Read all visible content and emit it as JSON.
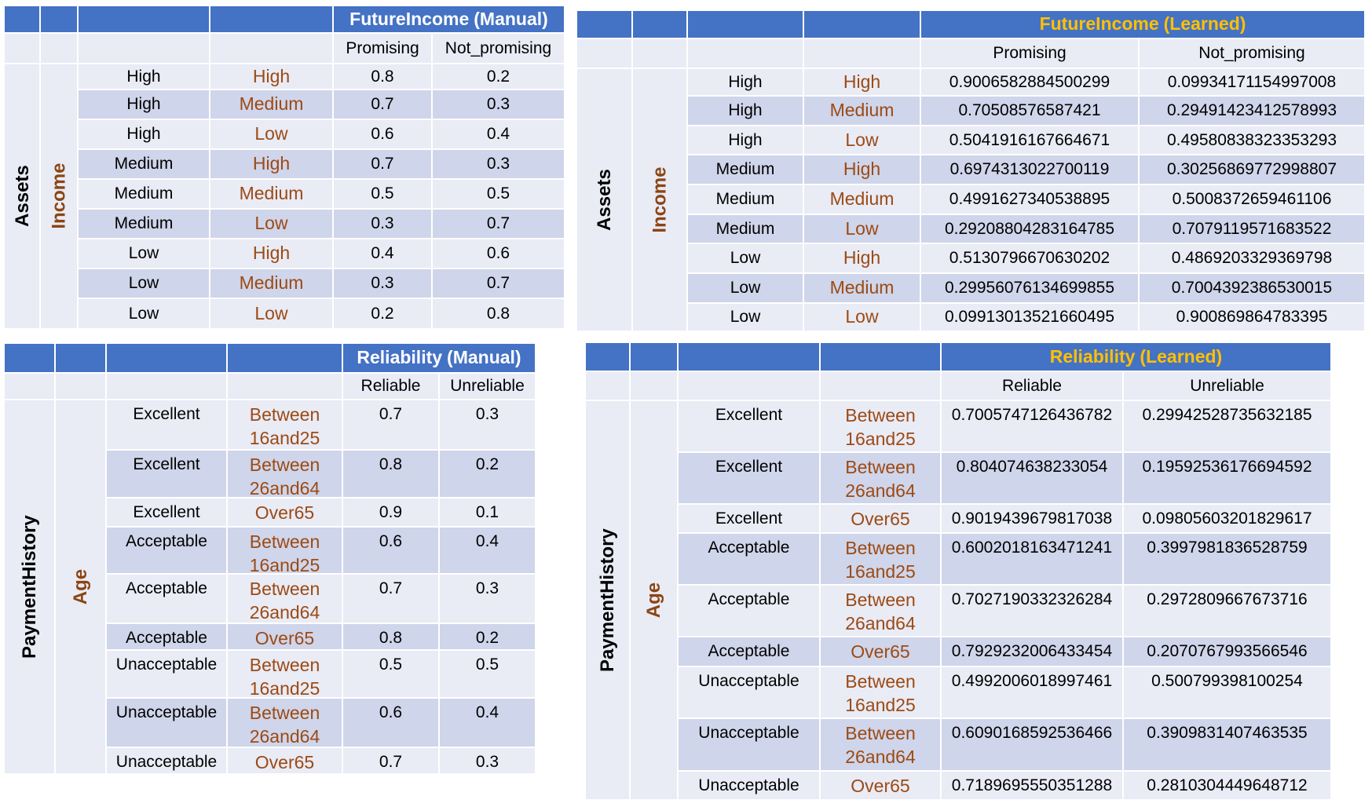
{
  "tables": [
    {
      "id": "future-income-manual",
      "title_name": "FutureIncome",
      "title_mode": "(Manual)",
      "col_headers": [
        "Promising",
        "Not_promising"
      ],
      "parent1": "Assets",
      "parent2": "Income",
      "rows": [
        {
          "p1": "High",
          "p2": "High",
          "v1": "0.8",
          "v2": "0.2"
        },
        {
          "p1": "High",
          "p2": "Medium",
          "v1": "0.7",
          "v2": "0.3"
        },
        {
          "p1": "High",
          "p2": "Low",
          "v1": "0.6",
          "v2": "0.4"
        },
        {
          "p1": "Medium",
          "p2": "High",
          "v1": "0.7",
          "v2": "0.3"
        },
        {
          "p1": "Medium",
          "p2": "Medium",
          "v1": "0.5",
          "v2": "0.5"
        },
        {
          "p1": "Medium",
          "p2": "Low",
          "v1": "0.3",
          "v2": "0.7"
        },
        {
          "p1": "Low",
          "p2": "High",
          "v1": "0.4",
          "v2": "0.6"
        },
        {
          "p1": "Low",
          "p2": "Medium",
          "v1": "0.3",
          "v2": "0.7"
        },
        {
          "p1": "Low",
          "p2": "Low",
          "v1": "0.2",
          "v2": "0.8"
        }
      ]
    },
    {
      "id": "future-income-learned",
      "title_name": "FutureIncome",
      "title_mode": "(Learned)",
      "col_headers": [
        "Promising",
        "Not_promising"
      ],
      "parent1": "Assets",
      "parent2": "Income",
      "rows": [
        {
          "p1": "High",
          "p2": "High",
          "v1": "0.9006582884500299",
          "v2": "0.09934171154997008"
        },
        {
          "p1": "High",
          "p2": "Medium",
          "v1": "0.70508576587421",
          "v2": "0.29491423412578993"
        },
        {
          "p1": "High",
          "p2": "Low",
          "v1": "0.5041916167664671",
          "v2": "0.49580838323353293"
        },
        {
          "p1": "Medium",
          "p2": "High",
          "v1": "0.6974313022700119",
          "v2": "0.30256869772998807"
        },
        {
          "p1": "Medium",
          "p2": "Medium",
          "v1": "0.4991627340538895",
          "v2": "0.5008372659461106"
        },
        {
          "p1": "Medium",
          "p2": "Low",
          "v1": "0.29208804283164785",
          "v2": "0.7079119571683522"
        },
        {
          "p1": "Low",
          "p2": "High",
          "v1": "0.5130796670630202",
          "v2": "0.4869203329369798"
        },
        {
          "p1": "Low",
          "p2": "Medium",
          "v1": "0.29956076134699855",
          "v2": "0.7004392386530015"
        },
        {
          "p1": "Low",
          "p2": "Low",
          "v1": "0.09913013521660495",
          "v2": "0.900869864783395"
        }
      ]
    },
    {
      "id": "reliability-manual",
      "title_name": "Reliability",
      "title_mode": "(Manual)",
      "col_headers": [
        "Reliable",
        "Unreliable"
      ],
      "parent1": "PaymentHistory",
      "parent2": "Age",
      "rows": [
        {
          "p1": "Excellent",
          "p2": [
            "Between",
            "16and25"
          ],
          "v1": "0.7",
          "v2": "0.3"
        },
        {
          "p1": "Excellent",
          "p2": [
            "Between",
            "26and64"
          ],
          "v1": "0.8",
          "v2": "0.2"
        },
        {
          "p1": "Excellent",
          "p2": [
            "Over65"
          ],
          "v1": "0.9",
          "v2": "0.1"
        },
        {
          "p1": "Acceptable",
          "p2": [
            "Between",
            "16and25"
          ],
          "v1": "0.6",
          "v2": "0.4"
        },
        {
          "p1": "Acceptable",
          "p2": [
            "Between",
            "26and64"
          ],
          "v1": "0.7",
          "v2": "0.3"
        },
        {
          "p1": "Acceptable",
          "p2": [
            "Over65"
          ],
          "v1": "0.8",
          "v2": "0.2"
        },
        {
          "p1": "Unacceptable",
          "p2": [
            "Between",
            "16and25"
          ],
          "v1": "0.5",
          "v2": "0.5"
        },
        {
          "p1": "Unacceptable",
          "p2": [
            "Between",
            "26and64"
          ],
          "v1": "0.6",
          "v2": "0.4"
        },
        {
          "p1": "Unacceptable",
          "p2": [
            "Over65"
          ],
          "v1": "0.7",
          "v2": "0.3"
        }
      ]
    },
    {
      "id": "reliability-learned",
      "title_name": "Reliability",
      "title_mode": "(Learned)",
      "col_headers": [
        "Reliable",
        "Unreliable"
      ],
      "parent1": "PaymentHistory",
      "parent2": "Age",
      "rows": [
        {
          "p1": "Excellent",
          "p2": [
            "Between",
            "16and25"
          ],
          "v1": "0.7005747126436782",
          "v2": "0.29942528735632185"
        },
        {
          "p1": "Excellent",
          "p2": [
            "Between",
            "26and64"
          ],
          "v1": "0.804074638233054",
          "v2": "0.19592536176694592"
        },
        {
          "p1": "Excellent",
          "p2": [
            "Over65"
          ],
          "v1": "0.9019439679817038",
          "v2": "0.09805603201829617"
        },
        {
          "p1": "Acceptable",
          "p2": [
            "Between",
            "16and25"
          ],
          "v1": "0.6002018163471241",
          "v2": "0.3997981836528759"
        },
        {
          "p1": "Acceptable",
          "p2": [
            "Between",
            "26and64"
          ],
          "v1": "0.7027190332326284",
          "v2": "0.2972809667673716"
        },
        {
          "p1": "Acceptable",
          "p2": [
            "Over65"
          ],
          "v1": "0.7929232006433454",
          "v2": "0.2070767993566546"
        },
        {
          "p1": "Unacceptable",
          "p2": [
            "Between",
            "16and25"
          ],
          "v1": "0.4992006018997461",
          "v2": "0.500799398100254"
        },
        {
          "p1": "Unacceptable",
          "p2": [
            "Between",
            "26and64"
          ],
          "v1": "0.6090168592536466",
          "v2": "0.3909831407463535"
        },
        {
          "p1": "Unacceptable",
          "p2": [
            "Over65"
          ],
          "v1": "0.7189695550351288",
          "v2": "0.2810304449648712"
        }
      ]
    }
  ]
}
